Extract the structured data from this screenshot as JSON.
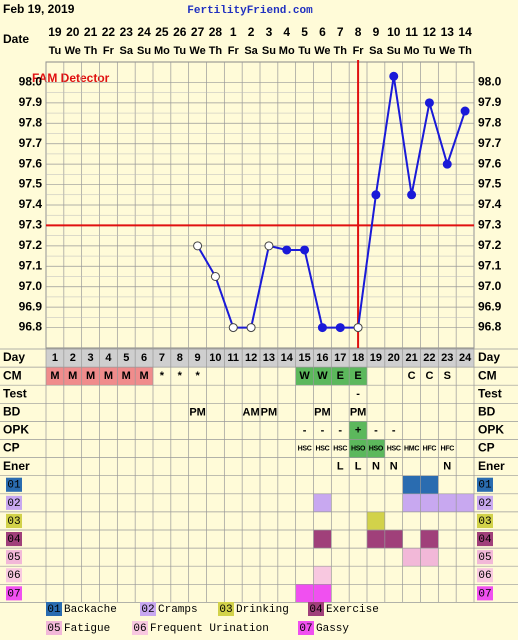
{
  "header": {
    "date": "Feb 19, 2019",
    "site": "FertilityFriend.com"
  },
  "chart_data": {
    "type": "line",
    "annotation": "FAM Detector",
    "date_label": "Date",
    "day_label": "Day",
    "dates": [
      "19",
      "20",
      "21",
      "22",
      "23",
      "24",
      "25",
      "26",
      "27",
      "28",
      "1",
      "2",
      "3",
      "4",
      "5",
      "6",
      "7",
      "8",
      "9",
      "10",
      "11",
      "12",
      "13",
      "14"
    ],
    "weekdays": [
      "Tu",
      "We",
      "Th",
      "Fr",
      "Sa",
      "Su",
      "Mo",
      "Tu",
      "We",
      "Th",
      "Fr",
      "Sa",
      "Su",
      "Mo",
      "Tu",
      "We",
      "Th",
      "Fr",
      "Sa",
      "Su",
      "Mo",
      "Tu",
      "We",
      "Th"
    ],
    "categories": [
      1,
      2,
      3,
      4,
      5,
      6,
      7,
      8,
      9,
      10,
      11,
      12,
      13,
      14,
      15,
      16,
      17,
      18,
      19,
      20,
      21,
      22,
      23,
      24
    ],
    "values": [
      null,
      null,
      null,
      null,
      null,
      null,
      null,
      null,
      97.2,
      97.05,
      96.8,
      96.8,
      97.2,
      97.18,
      97.18,
      96.8,
      96.8,
      96.8,
      97.45,
      98.03,
      97.45,
      97.9,
      97.6,
      97.86
    ],
    "hollow": [
      false,
      false,
      false,
      false,
      false,
      false,
      false,
      false,
      true,
      true,
      true,
      true,
      true,
      false,
      false,
      false,
      false,
      true,
      false,
      false,
      false,
      false,
      false,
      false
    ],
    "color": "#1a1ad8",
    "ylim": [
      96.7,
      98.1
    ],
    "yticks": [
      96.8,
      96.9,
      {
        "value": 97,
        "label": "97.0"
      },
      97.1,
      97.2,
      97.3,
      97.4,
      97.5,
      97.6,
      97.7,
      97.8,
      97.9,
      {
        "value": 98,
        "label": "98.0"
      }
    ],
    "grid": true,
    "coverline": 97.3,
    "coverline_color": "#e01010",
    "ovulation_day": 18
  },
  "rows": [
    {
      "label": "CM",
      "cells": [
        "M",
        "M",
        "M",
        "M",
        "M",
        "M",
        "*",
        "*",
        "*",
        null,
        null,
        null,
        null,
        null,
        "W",
        "W",
        "E",
        "E",
        null,
        null,
        "C",
        "C",
        "S",
        null
      ]
    },
    {
      "label": "Test",
      "cells": [
        null,
        null,
        null,
        null,
        null,
        null,
        null,
        null,
        null,
        null,
        null,
        null,
        null,
        null,
        null,
        null,
        null,
        "-",
        null,
        null,
        null,
        null,
        null,
        null
      ]
    },
    {
      "label": "BD",
      "cells": [
        null,
        null,
        null,
        null,
        null,
        null,
        null,
        null,
        "PM",
        null,
        null,
        "AM",
        "PM",
        null,
        null,
        "PM",
        null,
        "PM",
        null,
        null,
        null,
        null,
        null,
        null
      ]
    },
    {
      "label": "OPK",
      "cells": [
        null,
        null,
        null,
        null,
        null,
        null,
        null,
        null,
        null,
        null,
        null,
        null,
        null,
        null,
        "-",
        "-",
        "-",
        "+",
        "-",
        "-",
        null,
        null,
        null,
        null
      ]
    },
    {
      "label": "CP",
      "cells": [
        null,
        null,
        null,
        null,
        null,
        null,
        null,
        null,
        null,
        null,
        null,
        null,
        null,
        null,
        "HSC",
        "HSC",
        "HSC",
        "HSO",
        "HSO",
        "HSC",
        "HMC",
        "HFC",
        "HFC",
        null
      ]
    },
    {
      "label": "Ener",
      "cells": [
        null,
        null,
        null,
        null,
        null,
        null,
        null,
        null,
        null,
        null,
        null,
        null,
        null,
        null,
        null,
        null,
        "L",
        "L",
        "N",
        "N",
        null,
        null,
        "N",
        null
      ]
    }
  ],
  "cell_colors": {
    "M": "#f08c8c",
    "W": "#5cb85c",
    "E": "#5cb85c",
    "+": "#5cb85c",
    "HSO": "#5cb85c"
  },
  "symptoms": [
    {
      "code": "01",
      "name": "Backache",
      "color": "#2a6cb0",
      "days": [
        21,
        22
      ]
    },
    {
      "code": "02",
      "name": "Cramps",
      "color": "#c8a8f0",
      "days": [
        16,
        21,
        22,
        23,
        24
      ]
    },
    {
      "code": "03",
      "name": "Drinking",
      "color": "#d2d24a",
      "days": [
        19
      ]
    },
    {
      "code": "04",
      "name": "Exercise",
      "color": "#a0407a",
      "days": [
        16,
        19,
        20,
        22
      ]
    },
    {
      "code": "05",
      "name": "Fatigue",
      "color": "#f2b8d8",
      "days": [
        21,
        22
      ]
    },
    {
      "code": "06",
      "name": "Frequent Urination",
      "color": "#f8c8e0",
      "days": [
        16
      ]
    },
    {
      "code": "07",
      "name": "Gassy",
      "color": "#f050f0",
      "days": [
        15,
        16
      ]
    }
  ]
}
